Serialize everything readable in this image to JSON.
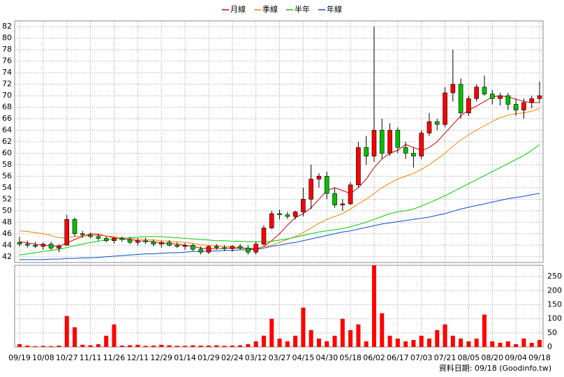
{
  "chart_data": {
    "type": "candlestick",
    "legend": [
      {
        "name": "月線",
        "color": "#cc0000"
      },
      {
        "name": "季線",
        "color": "#ff8000"
      },
      {
        "name": "半年",
        "color": "#00cc00"
      },
      {
        "name": "年線",
        "color": "#0050d0"
      }
    ],
    "categories": [
      "09/19",
      null,
      null,
      "10/08",
      null,
      null,
      "10/27",
      null,
      null,
      "11/11",
      null,
      null,
      "11/26",
      null,
      null,
      "12/11",
      null,
      null,
      "12/29",
      null,
      null,
      "01/14",
      null,
      null,
      "01/29",
      null,
      null,
      "02/24",
      null,
      null,
      "03/12",
      null,
      null,
      "03/27",
      null,
      null,
      "04/15",
      null,
      null,
      "04/30",
      null,
      null,
      "05/18",
      null,
      null,
      "06/02",
      null,
      null,
      "06/17",
      null,
      null,
      "07/03",
      null,
      null,
      "07/21",
      null,
      null,
      "08/05",
      null,
      null,
      "08/20",
      null,
      null,
      "09/04",
      null,
      null,
      "09/18"
    ],
    "open": [
      44.5,
      44.2,
      44.0,
      43.8,
      44.2,
      43.5,
      44,
      48.5,
      46,
      45.8,
      45.5,
      45.2,
      44.8,
      45.2,
      45,
      44.5,
      44.8,
      44.6,
      44.2,
      44.5,
      44,
      43.8,
      44,
      43.3,
      42.8,
      43.8,
      43.6,
      43.4,
      43.8,
      43.5,
      42.8,
      44.2,
      47,
      49.5,
      49.3,
      49,
      49.8,
      52,
      55.5,
      56,
      53,
      51,
      51.2,
      54.5,
      61,
      59.5,
      64,
      60,
      64,
      61,
      60,
      59.5,
      63.5,
      65.5,
      65,
      70.5,
      72,
      67,
      69.5,
      71.5,
      70.3,
      69.5,
      70,
      68.5,
      67.5,
      68.8,
      69.5
    ],
    "high": [
      45.5,
      44.8,
      44.6,
      44.5,
      44.6,
      44.2,
      49.3,
      48.8,
      46.5,
      46.2,
      46,
      45.6,
      45.4,
      45.5,
      45.4,
      45.2,
      45.3,
      45,
      44.8,
      44.9,
      44.5,
      44.4,
      44.3,
      43.8,
      44,
      44.2,
      44,
      44,
      44.2,
      44,
      44.6,
      47.5,
      50,
      50.2,
      49.8,
      50,
      54,
      58,
      56.5,
      56.8,
      54,
      52,
      55,
      62,
      63,
      82,
      66,
      65.2,
      64.5,
      62,
      61,
      64,
      67,
      66,
      71.5,
      78,
      73,
      70,
      72,
      73.5,
      71,
      70.5,
      70.5,
      69.5,
      69.5,
      70,
      72.5
    ],
    "low": [
      43.8,
      43.6,
      43.5,
      43.2,
      43.2,
      42.8,
      44,
      45.5,
      45.3,
      45.2,
      44.8,
      44.5,
      44.3,
      44.6,
      44.2,
      44,
      44.2,
      43.8,
      43.6,
      43.8,
      43.5,
      43.2,
      43,
      42.4,
      42.5,
      43.2,
      43,
      42.9,
      43.2,
      42.4,
      42.4,
      44,
      46.8,
      48.5,
      48.6,
      48.5,
      49,
      50.3,
      54,
      52,
      50.5,
      50,
      51,
      54,
      58,
      58.5,
      59,
      59.5,
      60,
      59,
      57.5,
      59,
      63,
      64,
      64.5,
      69,
      66,
      66.5,
      69,
      70,
      68.5,
      68.3,
      67.5,
      66.5,
      66,
      67.8,
      68.8
    ],
    "close": [
      44.2,
      44.0,
      43.8,
      44.2,
      43.5,
      43.9,
      48.5,
      46,
      45.8,
      45.5,
      45.2,
      44.8,
      45.2,
      45,
      44.5,
      44.8,
      44.6,
      44.2,
      44.5,
      44,
      43.8,
      44,
      43.3,
      42.8,
      43.8,
      43.6,
      43.4,
      43.8,
      43.5,
      42.8,
      44.2,
      47,
      49.5,
      49.3,
      49,
      49.8,
      52,
      55.5,
      56,
      53,
      51,
      51.2,
      54.5,
      61,
      59.5,
      64,
      60,
      64,
      61,
      60,
      59.5,
      63.5,
      65.5,
      65,
      70.5,
      72,
      67,
      69.5,
      71.5,
      70.3,
      69.5,
      70,
      68.5,
      67.5,
      68.8,
      69.5,
      70
    ],
    "up_color": "#ff0000",
    "down_color": "#00c000",
    "series": [
      {
        "name": "月線",
        "color": "#cc0000",
        "values": [
          44.6,
          44.4,
          44.2,
          44,
          43.9,
          43.8,
          44.4,
          45,
          45.5,
          46,
          45.9,
          45.6,
          45.3,
          45.1,
          45,
          44.8,
          44.7,
          44.6,
          44.4,
          44.3,
          44.2,
          44,
          43.8,
          43.5,
          43.4,
          43.4,
          43.5,
          43.5,
          43.5,
          43.4,
          43.3,
          43.8,
          44.8,
          46,
          47.5,
          48.8,
          49.5,
          50.5,
          52,
          53.5,
          54,
          53.5,
          53,
          54,
          55.5,
          57.5,
          59,
          60,
          60.5,
          61.5,
          61,
          60.5,
          61,
          62,
          63.5,
          65,
          66.5,
          67.5,
          68.2,
          69,
          69.8,
          70,
          69.8,
          69.4,
          69,
          68.8,
          68.8
        ]
      },
      {
        "name": "季線",
        "color": "#ff8000",
        "values": [
          46.5,
          46.4,
          46.2,
          46,
          45.7,
          45.3,
          45.3,
          45.5,
          45.6,
          45.7,
          45.7,
          45.6,
          45.5,
          45.3,
          45.2,
          45.1,
          45,
          44.9,
          44.8,
          44.7,
          44.6,
          44.5,
          44.3,
          44.1,
          44,
          43.9,
          43.8,
          43.7,
          43.6,
          43.5,
          43.5,
          43.7,
          44,
          44.5,
          45,
          45.5,
          46.2,
          47,
          47.8,
          48.5,
          49,
          49.5,
          50.3,
          51.2,
          52,
          53,
          54,
          54.8,
          55.5,
          56,
          56.5,
          57.2,
          58,
          59,
          60,
          61.2,
          62.3,
          63.2,
          64,
          64.8,
          65.5,
          66.2,
          66.6,
          66.9,
          67,
          67.3,
          67.8
        ]
      },
      {
        "name": "半年",
        "color": "#00cc00",
        "values": [
          42.3,
          42.5,
          42.7,
          42.9,
          43.1,
          43.3,
          43.6,
          43.9,
          44.2,
          44.5,
          44.7,
          44.9,
          45.1,
          45.2,
          45.3,
          45.4,
          45.5,
          45.5,
          45.5,
          45.4,
          45.3,
          45.2,
          45.1,
          45,
          44.9,
          44.8,
          44.8,
          44.7,
          44.7,
          44.6,
          44.6,
          44.6,
          44.7,
          44.9,
          45.1,
          45.4,
          45.7,
          46,
          46.3,
          46.5,
          46.7,
          46.9,
          47.2,
          47.6,
          48,
          48.5,
          49,
          49.5,
          49.8,
          50,
          50.3,
          50.8,
          51.4,
          52,
          52.6,
          53.3,
          54,
          54.7,
          55.4,
          56.1,
          56.8,
          57.5,
          58.2,
          58.9,
          59.6,
          60.5,
          61.5
        ]
      },
      {
        "name": "年線",
        "color": "#0050d0",
        "values": [
          41.5,
          41.5,
          41.5,
          41.5,
          41.6,
          41.6,
          41.7,
          41.7,
          41.8,
          41.8,
          41.9,
          42,
          42.1,
          42.2,
          42.3,
          42.4,
          42.5,
          42.5,
          42.6,
          42.7,
          42.7,
          42.8,
          42.9,
          42.9,
          43,
          43,
          43.1,
          43.1,
          43.2,
          43.2,
          43.3,
          43.5,
          43.8,
          44,
          44.3,
          44.5,
          44.8,
          45.1,
          45.4,
          45.7,
          46,
          46.3,
          46.5,
          46.8,
          47.1,
          47.4,
          47.7,
          47.9,
          48.1,
          48.3,
          48.5,
          48.7,
          48.9,
          49.2,
          49.5,
          49.9,
          50.3,
          50.6,
          50.9,
          51.2,
          51.5,
          51.8,
          52.1,
          52.3,
          52.5,
          52.8,
          53
        ]
      }
    ],
    "ylim": [
      41,
      83
    ],
    "yticks": [
      42,
      44,
      46,
      48,
      50,
      52,
      54,
      56,
      58,
      60,
      62,
      64,
      66,
      68,
      70,
      72,
      74,
      76,
      78,
      80,
      82
    ],
    "grid": true,
    "volume": {
      "color": "#ff0000",
      "ylim": [
        0,
        290
      ],
      "yticks": [
        0,
        50,
        100,
        150,
        200,
        250
      ],
      "values": [
        10,
        5,
        3,
        4,
        3,
        5,
        110,
        70,
        8,
        6,
        10,
        40,
        80,
        5,
        6,
        8,
        4,
        5,
        8,
        6,
        4,
        4,
        6,
        5,
        5,
        6,
        4,
        5,
        6,
        10,
        20,
        40,
        100,
        30,
        20,
        40,
        140,
        60,
        30,
        20,
        40,
        100,
        60,
        80,
        20,
        290,
        120,
        40,
        30,
        20,
        25,
        40,
        30,
        60,
        80,
        40,
        30,
        20,
        30,
        115,
        20,
        15,
        20,
        10,
        30,
        15,
        25
      ]
    },
    "source_note": "資料日期: 09/18 (Goodinfo.tw)"
  }
}
